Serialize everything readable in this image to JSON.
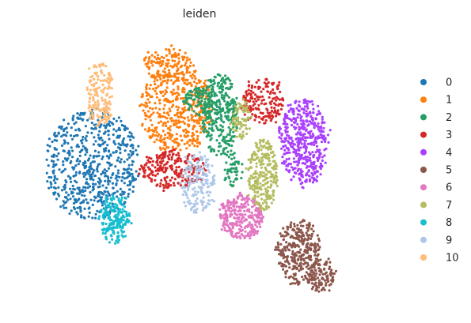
{
  "chart_data": {
    "type": "scatter",
    "title": "leiden",
    "xlabel": "",
    "ylabel": "",
    "grid": false,
    "legend_placement": "right",
    "xlim": [
      0,
      100
    ],
    "ylim": [
      0,
      100
    ],
    "series": [
      {
        "name": "0",
        "color": "#1f77b4",
        "regions": [
          {
            "cx": 19,
            "cy": 52,
            "rx": 13,
            "ry": 20,
            "n": 650
          }
        ]
      },
      {
        "name": "1",
        "color": "#ff7f0e",
        "regions": [
          {
            "cx": 42,
            "cy": 72,
            "rx": 10,
            "ry": 16,
            "n": 480
          },
          {
            "cx": 40,
            "cy": 88,
            "rx": 7,
            "ry": 6,
            "n": 120
          }
        ]
      },
      {
        "name": "2",
        "color": "#279e68",
        "regions": [
          {
            "cx": 54,
            "cy": 70,
            "rx": 5,
            "ry": 15,
            "n": 330
          },
          {
            "cx": 48,
            "cy": 75,
            "rx": 4,
            "ry": 5,
            "n": 90
          },
          {
            "cx": 58,
            "cy": 50,
            "rx": 2.5,
            "ry": 6,
            "n": 50
          }
        ]
      },
      {
        "name": "3",
        "color": "#d62728",
        "regions": [
          {
            "cx": 41,
            "cy": 50,
            "rx": 9,
            "ry": 7,
            "n": 240
          },
          {
            "cx": 66,
            "cy": 75,
            "rx": 6,
            "ry": 8,
            "n": 170
          }
        ]
      },
      {
        "name": "4",
        "color": "#aa40fc",
        "regions": [
          {
            "cx": 77,
            "cy": 60,
            "rx": 6.5,
            "ry": 16,
            "n": 470
          }
        ]
      },
      {
        "name": "5",
        "color": "#8c564b",
        "regions": [
          {
            "cx": 76,
            "cy": 20,
            "rx": 6,
            "ry": 12,
            "n": 320
          },
          {
            "cx": 82,
            "cy": 12,
            "rx": 4,
            "ry": 6,
            "n": 110
          }
        ]
      },
      {
        "name": "6",
        "color": "#e377c2",
        "regions": [
          {
            "cx": 60,
            "cy": 33,
            "rx": 6,
            "ry": 8,
            "n": 300
          }
        ]
      },
      {
        "name": "7",
        "color": "#b5bd61",
        "regions": [
          {
            "cx": 66,
            "cy": 48,
            "rx": 4,
            "ry": 13,
            "n": 270
          },
          {
            "cx": 60,
            "cy": 68,
            "rx": 3,
            "ry": 7,
            "n": 80
          }
        ]
      },
      {
        "name": "8",
        "color": "#17becf",
        "regions": [
          {
            "cx": 25,
            "cy": 32,
            "rx": 4,
            "ry": 9,
            "n": 190
          }
        ]
      },
      {
        "name": "9",
        "color": "#aec7e8",
        "regions": [
          {
            "cx": 48,
            "cy": 45,
            "rx": 4.5,
            "ry": 11,
            "n": 180
          }
        ]
      },
      {
        "name": "10",
        "color": "#ffbb78",
        "regions": [
          {
            "cx": 21,
            "cy": 77,
            "rx": 3.5,
            "ry": 12,
            "n": 170
          }
        ]
      }
    ]
  }
}
